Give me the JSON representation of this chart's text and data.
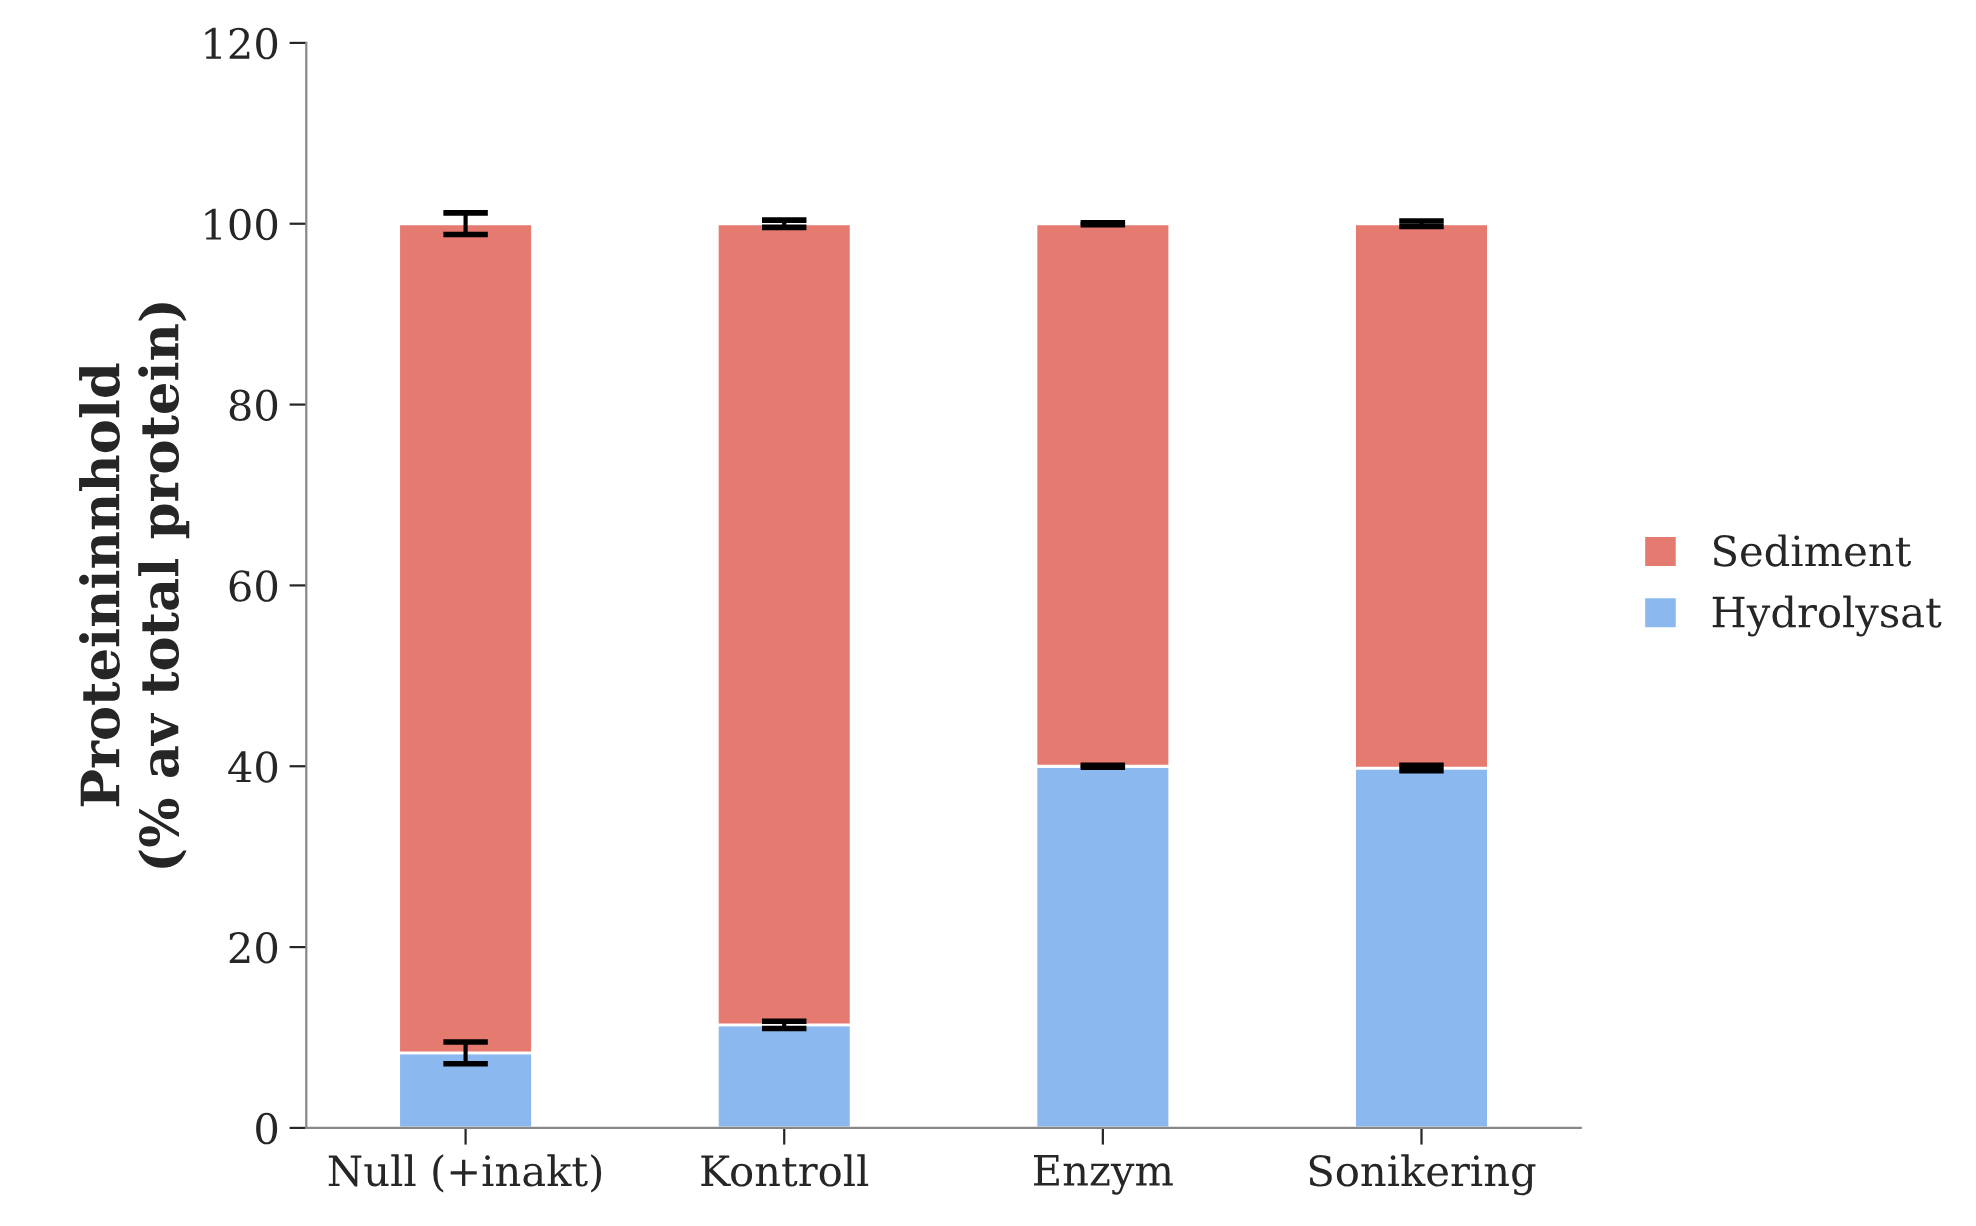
{
  "chart_data": {
    "type": "bar",
    "stacked": true,
    "ylabel": "Proteininnhold\n(% av total protein)",
    "categories": [
      "Null (+inakt)",
      "Kontroll",
      "Enzym",
      "Sonikering"
    ],
    "series": [
      {
        "name": "Hydrolysat",
        "color": "#8ab8ef",
        "values": [
          8.3,
          11.4,
          40.0,
          39.8
        ],
        "errors": [
          1.2,
          0.4,
          0.1,
          0.3
        ]
      },
      {
        "name": "Sediment",
        "color": "#e57a70",
        "values": [
          91.7,
          88.6,
          60.0,
          60.2
        ],
        "errors": [
          1.2,
          0.4,
          0.1,
          0.3
        ]
      }
    ],
    "ylim": [
      0,
      120
    ],
    "yticks": [
      0,
      20,
      40,
      60,
      80,
      100,
      120
    ],
    "grid": false,
    "legend": "right"
  }
}
